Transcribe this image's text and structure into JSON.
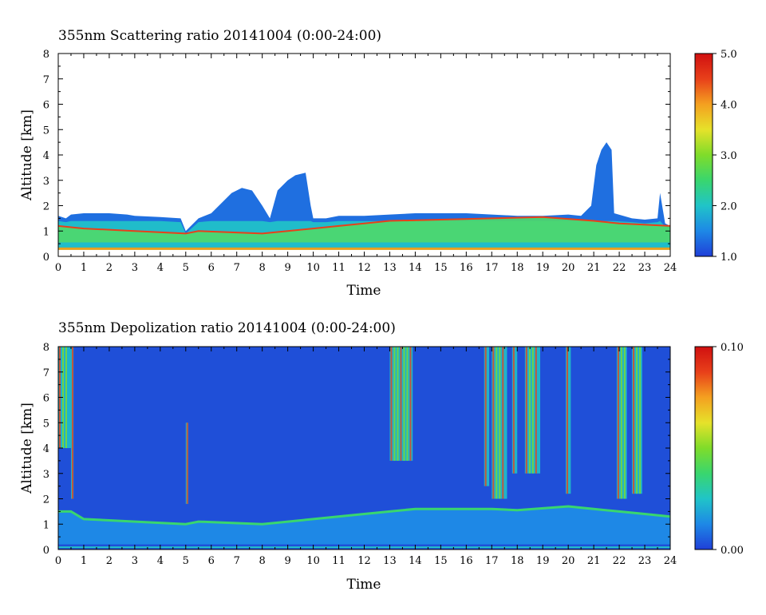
{
  "chart_data": [
    {
      "type": "heatmap",
      "title": "355nm Scattering ratio  20141004 (0:00-24:00)",
      "xlabel": "Time",
      "ylabel": "Altitude [km]",
      "xlim": [
        0,
        24
      ],
      "ylim": [
        0,
        8
      ],
      "x_ticks": [
        "0",
        "1",
        "2",
        "3",
        "4",
        "5",
        "6",
        "7",
        "8",
        "9",
        "10",
        "11",
        "12",
        "13",
        "14",
        "15",
        "16",
        "17",
        "18",
        "19",
        "20",
        "21",
        "22",
        "23",
        "24"
      ],
      "y_ticks": [
        "0",
        "1",
        "2",
        "3",
        "4",
        "5",
        "6",
        "7",
        "8"
      ],
      "colorbar": {
        "range": [
          1.0,
          5.0
        ],
        "tick_labels": [
          "1.0",
          "2.0",
          "3.0",
          "4.0",
          "5.0"
        ],
        "colors": [
          "#1f3fd8",
          "#1e88e6",
          "#20c4c8",
          "#39d66e",
          "#7fdc2a",
          "#e6e22a",
          "#f4a020",
          "#e8401a",
          "#d01010"
        ]
      },
      "background": "#ffffff",
      "cloud_top_km": [
        [
          0.0,
          1.6
        ],
        [
          0.3,
          1.5
        ],
        [
          0.5,
          1.65
        ],
        [
          1.0,
          1.7
        ],
        [
          2.0,
          1.7
        ],
        [
          2.7,
          1.65
        ],
        [
          3.0,
          1.6
        ],
        [
          4.0,
          1.55
        ],
        [
          4.8,
          1.5
        ],
        [
          5.0,
          1.0
        ],
        [
          5.5,
          1.5
        ],
        [
          6.0,
          1.7
        ],
        [
          6.3,
          2.0
        ],
        [
          6.8,
          2.5
        ],
        [
          7.2,
          2.7
        ],
        [
          7.6,
          2.6
        ],
        [
          8.0,
          2.0
        ],
        [
          8.3,
          1.5
        ],
        [
          8.6,
          2.6
        ],
        [
          9.0,
          3.0
        ],
        [
          9.3,
          3.2
        ],
        [
          9.7,
          3.3
        ],
        [
          9.9,
          2.0
        ],
        [
          10.0,
          1.5
        ],
        [
          10.5,
          1.5
        ],
        [
          11.0,
          1.6
        ],
        [
          12.0,
          1.6
        ],
        [
          13.0,
          1.65
        ],
        [
          14.0,
          1.7
        ],
        [
          15.0,
          1.7
        ],
        [
          16.0,
          1.7
        ],
        [
          17.0,
          1.65
        ],
        [
          18.0,
          1.6
        ],
        [
          19.0,
          1.6
        ],
        [
          20.0,
          1.65
        ],
        [
          20.5,
          1.6
        ],
        [
          20.9,
          2.0
        ],
        [
          21.1,
          3.6
        ],
        [
          21.3,
          4.2
        ],
        [
          21.5,
          4.5
        ],
        [
          21.7,
          4.2
        ],
        [
          21.8,
          1.7
        ],
        [
          22.5,
          1.5
        ],
        [
          23.0,
          1.45
        ],
        [
          23.5,
          1.5
        ],
        [
          23.6,
          2.5
        ],
        [
          23.8,
          1.3
        ],
        [
          24.0,
          1.2
        ]
      ],
      "enhanced_layer_km": [
        [
          0.0,
          1.2
        ],
        [
          1.0,
          1.1
        ],
        [
          3.0,
          1.0
        ],
        [
          5.0,
          0.9
        ],
        [
          5.5,
          1.0
        ],
        [
          8.0,
          0.9
        ],
        [
          9.0,
          1.0
        ],
        [
          10.0,
          1.1
        ],
        [
          11.0,
          1.2
        ],
        [
          12.0,
          1.3
        ],
        [
          13.0,
          1.4
        ],
        [
          15.0,
          1.45
        ],
        [
          17.0,
          1.5
        ],
        [
          19.0,
          1.55
        ],
        [
          21.0,
          1.4
        ],
        [
          22.0,
          1.3
        ],
        [
          24.0,
          1.2
        ]
      ]
    },
    {
      "type": "heatmap",
      "title": "355nm Depolization ratio  20141004 (0:00-24:00)",
      "xlabel": "Time",
      "ylabel": "Altitude [km]",
      "xlim": [
        0,
        24
      ],
      "ylim": [
        0,
        8
      ],
      "x_ticks": [
        "0",
        "1",
        "2",
        "3",
        "4",
        "5",
        "6",
        "7",
        "8",
        "9",
        "10",
        "11",
        "12",
        "13",
        "14",
        "15",
        "16",
        "17",
        "18",
        "19",
        "20",
        "21",
        "22",
        "23",
        "24"
      ],
      "y_ticks": [
        "0",
        "1",
        "2",
        "3",
        "4",
        "5",
        "6",
        "7",
        "8"
      ],
      "colorbar": {
        "range": [
          0.0,
          0.1
        ],
        "tick_labels": [
          "0.00",
          "0.10"
        ],
        "colors": [
          "#1f3fd8",
          "#1e88e6",
          "#20c4c8",
          "#39d66e",
          "#7fdc2a",
          "#e6e22a",
          "#f4a020",
          "#e8401a",
          "#d01010"
        ]
      },
      "background": "#1f4fd8",
      "high_depol_columns": [
        [
          0.0,
          0.5,
          4.0,
          8.0
        ],
        [
          0.5,
          0.6,
          2.0,
          8.0
        ],
        [
          5.0,
          5.1,
          1.8,
          5.0
        ],
        [
          13.0,
          13.9,
          3.5,
          8.0
        ],
        [
          16.7,
          16.9,
          2.5,
          8.0
        ],
        [
          17.0,
          17.6,
          2.0,
          8.0
        ],
        [
          17.8,
          18.0,
          3.0,
          8.0
        ],
        [
          18.3,
          18.9,
          3.0,
          8.0
        ],
        [
          19.9,
          20.1,
          2.2,
          8.0
        ],
        [
          21.9,
          22.3,
          2.0,
          8.0
        ],
        [
          22.5,
          22.9,
          2.2,
          8.0
        ]
      ],
      "boundary_layer_km": [
        [
          0.0,
          1.5
        ],
        [
          0.5,
          1.5
        ],
        [
          1.0,
          1.2
        ],
        [
          5.0,
          1.0
        ],
        [
          5.5,
          1.1
        ],
        [
          8.0,
          1.0
        ],
        [
          9.0,
          1.1
        ],
        [
          10.0,
          1.2
        ],
        [
          12.0,
          1.4
        ],
        [
          13.0,
          1.5
        ],
        [
          14.0,
          1.6
        ],
        [
          16.0,
          1.6
        ],
        [
          17.0,
          1.6
        ],
        [
          18.0,
          1.55
        ],
        [
          20.0,
          1.7
        ],
        [
          21.0,
          1.6
        ],
        [
          22.0,
          1.5
        ],
        [
          23.0,
          1.4
        ],
        [
          24.0,
          1.3
        ]
      ]
    }
  ]
}
